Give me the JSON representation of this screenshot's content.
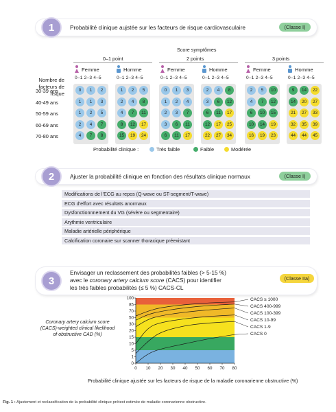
{
  "step1": {
    "number": "1",
    "title": "Probabilité clinique aujstée sur les facteurs de risque cardiovasculaire",
    "badge": "(Classe I)",
    "score_title": "Score symptômes",
    "point_groups": [
      "0–1 point",
      "2 points",
      "3 points"
    ],
    "sex_labels": [
      "Femme",
      "Homme"
    ],
    "col_header": "0–1 2–3 4–5",
    "row_header": "Nombre de facteurs de risque",
    "age_rows": [
      "30-39 ans",
      "40-49 ans",
      "50-59 ans",
      "60-69 ans",
      "70-80 ans"
    ],
    "grids": [
      {
        "group": "0–1 point",
        "sex": "Femme",
        "cells": [
          [
            0,
            1,
            2
          ],
          [
            1,
            1,
            3
          ],
          [
            1,
            2,
            5
          ],
          [
            2,
            4,
            7
          ],
          [
            4,
            7,
            8
          ]
        ],
        "colors": [
          [
            "b",
            "b",
            "b"
          ],
          [
            "b",
            "b",
            "b"
          ],
          [
            "b",
            "b",
            "b"
          ],
          [
            "b",
            "b",
            "g"
          ],
          [
            "b",
            "g",
            "g"
          ]
        ]
      },
      {
        "group": "0–1 point",
        "sex": "Homme",
        "cells": [
          [
            1,
            2,
            5
          ],
          [
            2,
            4,
            8
          ],
          [
            4,
            7,
            11
          ],
          [
            8,
            12,
            17
          ],
          [
            15,
            19,
            24
          ]
        ],
        "colors": [
          [
            "b",
            "b",
            "b"
          ],
          [
            "b",
            "b",
            "g"
          ],
          [
            "b",
            "g",
            "g"
          ],
          [
            "g",
            "g",
            "y"
          ],
          [
            "g",
            "y",
            "y"
          ]
        ]
      },
      {
        "group": "2 points",
        "sex": "Femme",
        "cells": [
          [
            0,
            1,
            3
          ],
          [
            1,
            2,
            4
          ],
          [
            2,
            3,
            7
          ],
          [
            3,
            6,
            11
          ],
          [
            6,
            11,
            17
          ]
        ],
        "colors": [
          [
            "b",
            "b",
            "b"
          ],
          [
            "b",
            "b",
            "b"
          ],
          [
            "b",
            "b",
            "g"
          ],
          [
            "b",
            "g",
            "g"
          ],
          [
            "g",
            "g",
            "y"
          ]
        ]
      },
      {
        "group": "2 points",
        "sex": "Homme",
        "cells": [
          [
            2,
            4,
            8
          ],
          [
            3,
            6,
            12
          ],
          [
            6,
            11,
            17
          ],
          [
            12,
            17,
            25
          ],
          [
            22,
            27,
            34
          ]
        ],
        "colors": [
          [
            "b",
            "b",
            "g"
          ],
          [
            "b",
            "g",
            "g"
          ],
          [
            "g",
            "g",
            "y"
          ],
          [
            "g",
            "y",
            "y"
          ],
          [
            "y",
            "y",
            "y"
          ]
        ]
      },
      {
        "group": "3 points",
        "sex": "Femme",
        "cells": [
          [
            2,
            5,
            10
          ],
          [
            4,
            7,
            12
          ],
          [
            6,
            10,
            15
          ],
          [
            10,
            14,
            19
          ],
          [
            16,
            19,
            23
          ]
        ],
        "colors": [
          [
            "b",
            "b",
            "g"
          ],
          [
            "b",
            "g",
            "g"
          ],
          [
            "g",
            "g",
            "g"
          ],
          [
            "g",
            "g",
            "y"
          ],
          [
            "y",
            "y",
            "y"
          ]
        ]
      },
      {
        "group": "3 points",
        "sex": "Homme",
        "cells": [
          [
            9,
            14,
            22
          ],
          [
            14,
            20,
            27
          ],
          [
            21,
            27,
            33
          ],
          [
            32,
            35,
            39
          ],
          [
            44,
            44,
            45
          ]
        ],
        "colors": [
          [
            "g",
            "g",
            "y"
          ],
          [
            "g",
            "y",
            "y"
          ],
          [
            "y",
            "y",
            "y"
          ],
          [
            "y",
            "y",
            "y"
          ],
          [
            "y",
            "y",
            "y"
          ]
        ]
      }
    ],
    "legend_title": "Probabilité clinique :",
    "legend": [
      {
        "label": "Très faible",
        "color": "#9ac8ea"
      },
      {
        "label": "Faible",
        "color": "#45ad6b"
      },
      {
        "label": "Modérée",
        "color": "#f5dc2e"
      }
    ]
  },
  "step2": {
    "number": "2",
    "title": "Ajuster la probabilité clinique en fonction des résultats clinique normaux",
    "badge": "(Classe I)",
    "conditions": [
      "Modifications de l’ECG au repos (Q-wave ou ST-segment/T-wave)",
      "ECG d’effort avec résultats anormaux",
      "Dysfonctionnnement du VG (sévère ou segmentaire)",
      "Arythmie ventriculaire",
      "Maladie artérielle périphérique",
      "Calcification coronaire sur scanner thoracique préexistant"
    ]
  },
  "step3": {
    "number": "3",
    "title_1": "Envisager un reclassement des probabilités faibles (> 5-15 %)",
    "title_2a": "avec le ",
    "title_2b": "coronary artery calcium score",
    "title_2c": " (CACS) pour identifier",
    "title_3": "les très faibles probabilités (≤ 5 %) CACS-CL",
    "badge": "(Classe IIa)"
  },
  "chart_data": {
    "type": "area",
    "ylabel": "Coronary artery calcium score (CACS)-weighted clinical likelihood of obstructive CAD (%)",
    "xlabel": "Probabilité clinique ajustée sur les facteurs de risque de la maladie coronarienne obstructive (%)",
    "x_ticks": [
      0,
      10,
      20,
      30,
      40,
      50,
      60,
      70,
      80
    ],
    "y_ticks": [
      0,
      1,
      5,
      10,
      15,
      20,
      30,
      50,
      70,
      85,
      100
    ],
    "xlim": [
      0,
      80
    ],
    "ylim": [
      0,
      100
    ],
    "bands": [
      {
        "from": 0,
        "to": 5,
        "color": "#7ab2e0"
      },
      {
        "from": 5,
        "to": 15,
        "color": "#38a860"
      },
      {
        "from": 15,
        "to": 50,
        "color": "#f6e11e"
      },
      {
        "from": 50,
        "to": 85,
        "color": "#f0b928"
      },
      {
        "from": 85,
        "to": 100,
        "color": "#e8603a"
      }
    ],
    "series": [
      {
        "name": "CACS ≥ 1000",
        "values": [
          [
            0,
            55
          ],
          [
            10,
            70
          ],
          [
            20,
            78
          ],
          [
            40,
            85
          ],
          [
            60,
            89
          ],
          [
            80,
            91
          ]
        ]
      },
      {
        "name": "CACS 400-999",
        "values": [
          [
            0,
            42
          ],
          [
            10,
            60
          ],
          [
            20,
            69
          ],
          [
            40,
            78
          ],
          [
            60,
            83
          ],
          [
            80,
            86
          ]
        ]
      },
      {
        "name": "CACS 100-399",
        "values": [
          [
            0,
            26
          ],
          [
            10,
            45
          ],
          [
            20,
            56
          ],
          [
            40,
            67
          ],
          [
            60,
            73
          ],
          [
            80,
            77
          ]
        ]
      },
      {
        "name": "CACS 10-99",
        "values": [
          [
            0,
            10
          ],
          [
            10,
            25
          ],
          [
            20,
            35
          ],
          [
            40,
            47
          ],
          [
            60,
            54
          ],
          [
            80,
            58
          ]
        ]
      },
      {
        "name": "CACS 1-9",
        "values": [
          [
            0,
            3
          ],
          [
            10,
            12
          ],
          [
            20,
            19
          ],
          [
            40,
            28
          ],
          [
            60,
            34
          ],
          [
            80,
            38
          ]
        ]
      },
      {
        "name": "CACS 0",
        "values": [
          [
            0,
            0
          ],
          [
            10,
            3
          ],
          [
            20,
            6
          ],
          [
            40,
            10
          ],
          [
            60,
            14
          ],
          [
            80,
            17
          ]
        ]
      }
    ]
  },
  "caption_bold": "Fig. 1 :",
  "caption": " Ajustement et reclassification de la probabilité clinique prétest estimée de maladie coronarienne obstructive."
}
